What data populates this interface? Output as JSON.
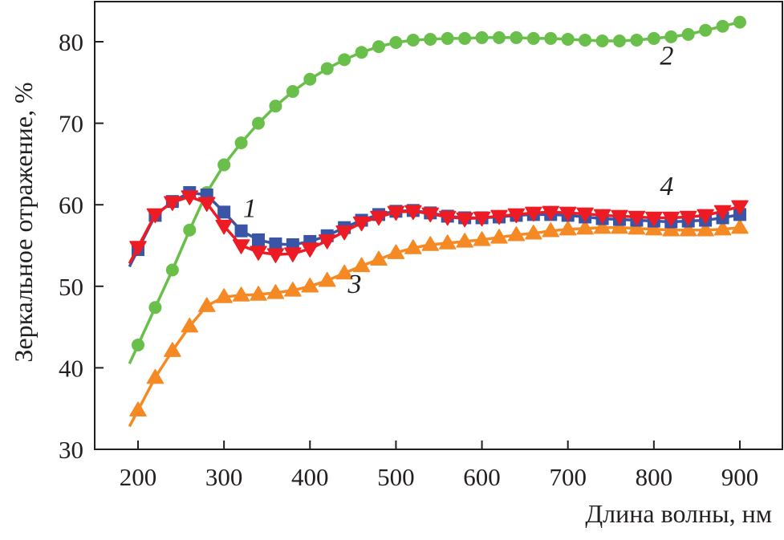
{
  "chart_data": {
    "type": "line",
    "title": "",
    "xlabel": "Длина волны, нм",
    "ylabel": "Зеркальное отражение, %",
    "xlim": [
      110,
      990
    ],
    "ylim": [
      30,
      85
    ],
    "xticks": [
      200,
      300,
      400,
      500,
      600,
      700,
      800,
      900
    ],
    "yticks": [
      30,
      40,
      50,
      60,
      70,
      80
    ],
    "grid": false,
    "x": [
      200,
      220,
      240,
      260,
      280,
      300,
      320,
      340,
      360,
      380,
      400,
      420,
      440,
      460,
      480,
      500,
      520,
      540,
      560,
      580,
      600,
      620,
      640,
      660,
      680,
      700,
      720,
      740,
      760,
      780,
      800,
      820,
      840,
      860,
      880,
      900
    ],
    "series": [
      {
        "name": "1",
        "marker": "square",
        "color": "#3b55a6",
        "values": [
          54.5,
          58.7,
          60.4,
          61.5,
          61.2,
          59.1,
          56.8,
          55.7,
          55.2,
          55.1,
          55.5,
          56.2,
          57.2,
          58.1,
          58.8,
          59.2,
          59.3,
          59.0,
          58.6,
          58.4,
          58.4,
          58.5,
          58.7,
          58.8,
          58.8,
          58.7,
          58.5,
          58.3,
          58.2,
          58.1,
          58.0,
          57.9,
          58.0,
          58.1,
          58.4,
          58.8
        ]
      },
      {
        "name": "2",
        "marker": "circle",
        "color": "#6abf4b",
        "values": [
          42.8,
          47.4,
          52.0,
          56.9,
          61.5,
          64.9,
          67.6,
          70.0,
          72.1,
          73.9,
          75.4,
          76.7,
          77.8,
          78.7,
          79.4,
          79.9,
          80.2,
          80.3,
          80.4,
          80.4,
          80.5,
          80.5,
          80.5,
          80.4,
          80.4,
          80.3,
          80.2,
          80.1,
          80.1,
          80.2,
          80.4,
          80.6,
          80.9,
          81.4,
          81.9,
          82.4
        ]
      },
      {
        "name": "3",
        "marker": "triangle-up",
        "color": "#f58a25",
        "values": [
          34.8,
          38.8,
          42.1,
          45.1,
          47.6,
          48.7,
          48.9,
          49.0,
          49.2,
          49.5,
          50.0,
          50.7,
          51.6,
          52.5,
          53.3,
          54.1,
          54.7,
          55.1,
          55.3,
          55.5,
          55.7,
          56.0,
          56.3,
          56.5,
          56.8,
          57.0,
          57.1,
          57.2,
          57.2,
          57.1,
          57.0,
          56.9,
          56.9,
          56.9,
          57.0,
          57.2
        ]
      },
      {
        "name": "4",
        "marker": "triangle-down",
        "color": "#ed1c24",
        "values": [
          54.8,
          58.8,
          60.3,
          61.0,
          60.2,
          57.4,
          55.0,
          54.2,
          53.9,
          54.0,
          54.6,
          55.6,
          56.7,
          57.8,
          58.5,
          59.1,
          59.2,
          58.9,
          58.5,
          58.3,
          58.4,
          58.6,
          58.8,
          59.0,
          59.1,
          59.0,
          58.9,
          58.7,
          58.6,
          58.5,
          58.4,
          58.4,
          58.5,
          58.7,
          59.2,
          59.8
        ]
      }
    ],
    "annotations": [
      {
        "text": "1",
        "x": 330,
        "y": 58.5
      },
      {
        "text": "2",
        "x": 815,
        "y": 77.2
      },
      {
        "text": "3",
        "x": 452,
        "y": 49.2
      },
      {
        "text": "4",
        "x": 815,
        "y": 61.2
      }
    ]
  }
}
